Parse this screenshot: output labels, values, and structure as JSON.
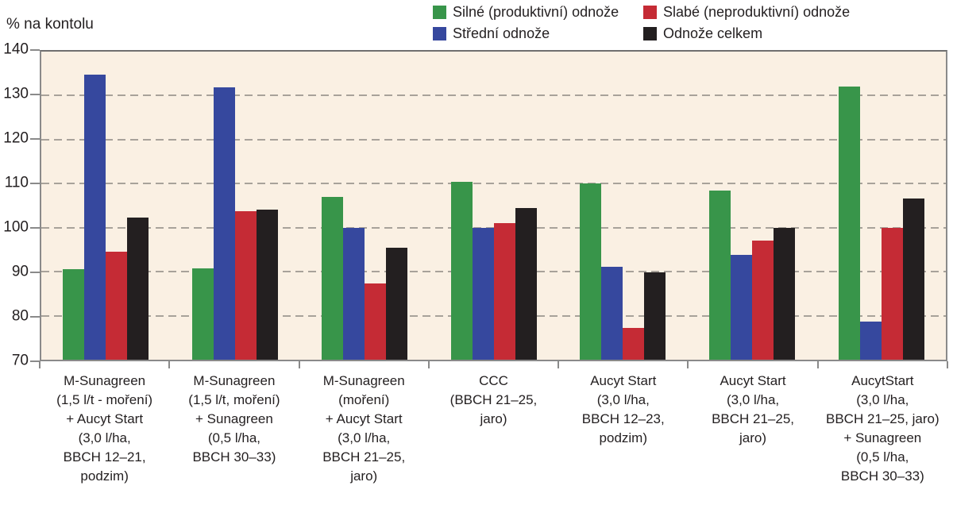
{
  "axis_title": "% na kontolu",
  "style": {
    "plot_bg": "#faf0e3",
    "grid_color": "#a8a29a",
    "frame_color": "#8a8a8a",
    "text_color": "#231f20"
  },
  "chart_data": {
    "type": "bar",
    "title": "",
    "ylabel": "% na kontolu",
    "ylim": [
      70,
      140
    ],
    "yticks": [
      70,
      80,
      90,
      100,
      110,
      120,
      130,
      140
    ],
    "grid": "horizontal-dashed",
    "legend_position": "top",
    "legend_display_order": [
      0,
      2,
      1,
      3
    ],
    "categories": [
      "M-Sunagreen\n(1,5 l/t - moření)\n+ Aucyt Start\n(3,0 l/ha,\nBBCH 12–21,\npodzim)",
      "M-Sunagreen\n(1,5 l/t, moření)\n+ Sunagreen\n(0,5 l/ha,\nBBCH 30–33)",
      "M-Sunagreen\n(moření)\n+ Aucyt Start\n(3,0 l/ha,\nBBCH 21–25,\njaro)",
      "CCC\n(BBCH 21–25,\njaro)",
      "Aucyt Start\n(3,0 l/ha,\nBBCH 12–23,\npodzim)",
      "Aucyt Start\n(3,0 l/ha,\nBBCH 21–25,\njaro)",
      "AucytStart\n(3,0 l/ha,\nBBCH 21–25, jaro)\n+ Sunagreen\n(0,5 l/ha,\nBBCH 30–33)"
    ],
    "series": [
      {
        "name": "Silné (produktivní) odnože",
        "color": "#38954a",
        "values": [
          90.5,
          90.7,
          107.0,
          110.5,
          110.0,
          108.5,
          132.0
        ]
      },
      {
        "name": "Střední odnože",
        "color": "#36489e",
        "values": [
          134.8,
          131.8,
          100.0,
          100.0,
          91.2,
          93.8,
          78.7
        ]
      },
      {
        "name": "Slabé (neproduktivní) odnože",
        "color": "#c52b35",
        "values": [
          94.5,
          103.8,
          87.3,
          101.0,
          77.2,
          97.0,
          100.0
        ]
      },
      {
        "name": "Odnože celkem",
        "color": "#231f20",
        "values": [
          102.3,
          104.1,
          95.5,
          104.5,
          89.9,
          99.9,
          106.7
        ]
      }
    ]
  }
}
